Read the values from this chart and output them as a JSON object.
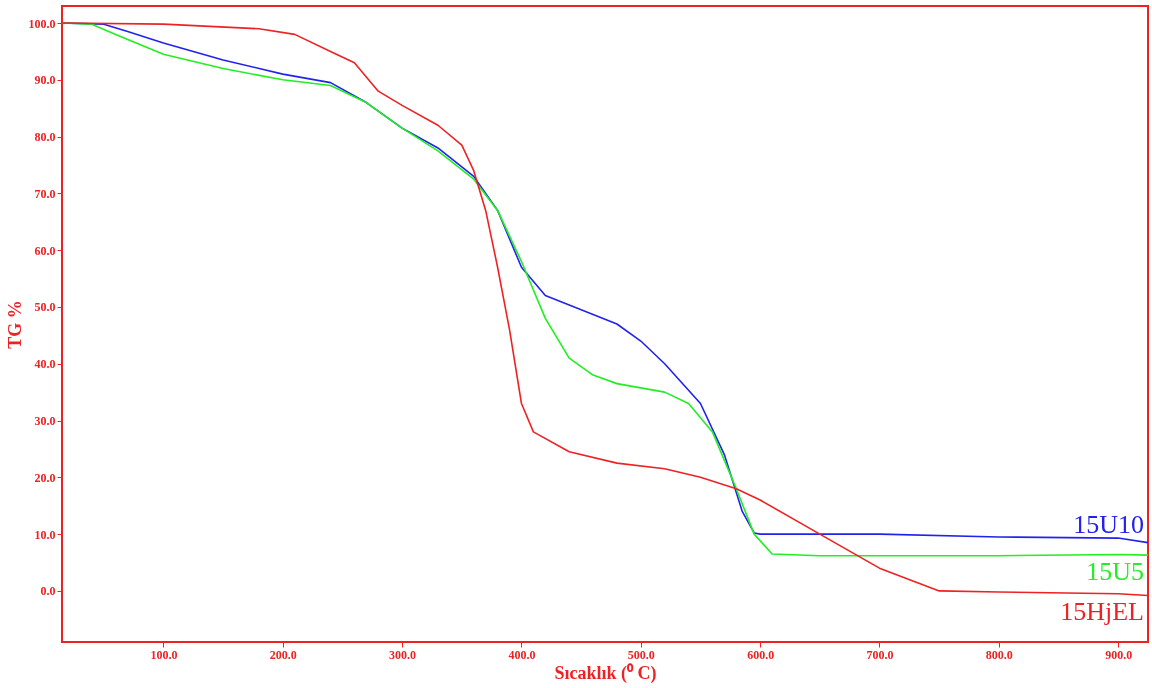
{
  "chart_data": {
    "type": "line",
    "xlabel": "Sıcaklık (⁰ C)",
    "ylabel": "TG %",
    "xlim": [
      15,
      925
    ],
    "ylim": [
      -9,
      103
    ],
    "xticks": [
      {
        "value": 100,
        "label": "100.0"
      },
      {
        "value": 200,
        "label": "200.0"
      },
      {
        "value": 300,
        "label": "300.0"
      },
      {
        "value": 400,
        "label": "400.0"
      },
      {
        "value": 500,
        "label": "500.0"
      },
      {
        "value": 600,
        "label": "600.0"
      },
      {
        "value": 700,
        "label": "700.0"
      },
      {
        "value": 800,
        "label": "800.0"
      },
      {
        "value": 900,
        "label": "900.0"
      }
    ],
    "yticks": [
      {
        "value": 0,
        "label": "0.0"
      },
      {
        "value": 10,
        "label": "10.0"
      },
      {
        "value": 20,
        "label": "20.0"
      },
      {
        "value": 30,
        "label": "30.0"
      },
      {
        "value": 40,
        "label": "40.0"
      },
      {
        "value": 50,
        "label": "50.0"
      },
      {
        "value": 60,
        "label": "60.0"
      },
      {
        "value": 70,
        "label": "70.0"
      },
      {
        "value": 80,
        "label": "80.0"
      },
      {
        "value": 90,
        "label": "90.0"
      },
      {
        "value": 100,
        "label": "100.0"
      }
    ],
    "grid": false,
    "legend": false,
    "marker": "none",
    "line_style": "solid",
    "series": [
      {
        "name": "15U10",
        "color": "#2222ee",
        "x": [
          15,
          50,
          70,
          100,
          150,
          200,
          240,
          270,
          300,
          330,
          360,
          380,
          400,
          420,
          450,
          480,
          500,
          520,
          550,
          570,
          585,
          595,
          600,
          700,
          800,
          900,
          925
        ],
        "values": [
          100,
          99.8,
          98.5,
          96.5,
          93.5,
          91,
          89.5,
          86,
          81.5,
          78,
          73,
          67,
          57,
          52,
          49.5,
          47,
          44,
          40,
          33,
          24,
          14,
          10.2,
          10,
          10,
          9.5,
          9.3,
          8.5
        ]
      },
      {
        "name": "15U5",
        "color": "#22ee22",
        "x": [
          15,
          40,
          60,
          100,
          150,
          200,
          240,
          270,
          300,
          330,
          360,
          380,
          400,
          420,
          440,
          460,
          480,
          520,
          540,
          560,
          580,
          595,
          610,
          650,
          800,
          900,
          925
        ],
        "values": [
          100,
          99.8,
          98,
          94.5,
          92,
          90,
          89,
          86,
          81.5,
          77.5,
          72.5,
          67,
          58,
          48,
          41,
          38,
          36.5,
          35,
          33,
          28,
          18,
          10,
          6.5,
          6.2,
          6.2,
          6.4,
          6.3
        ]
      },
      {
        "name": "15HjEL",
        "color": "#ee2222",
        "x": [
          15,
          100,
          180,
          210,
          240,
          260,
          280,
          300,
          330,
          350,
          360,
          370,
          380,
          390,
          400,
          410,
          440,
          480,
          520,
          550,
          580,
          600,
          650,
          700,
          750,
          800,
          900,
          925
        ],
        "values": [
          100,
          99.8,
          99,
          98,
          95,
          93,
          88,
          85.5,
          82,
          78.5,
          74,
          67,
          57,
          46,
          33,
          28,
          24.5,
          22.5,
          21.5,
          20,
          18,
          16,
          10,
          4,
          0,
          -0.2,
          -0.5,
          -0.8
        ]
      }
    ]
  }
}
